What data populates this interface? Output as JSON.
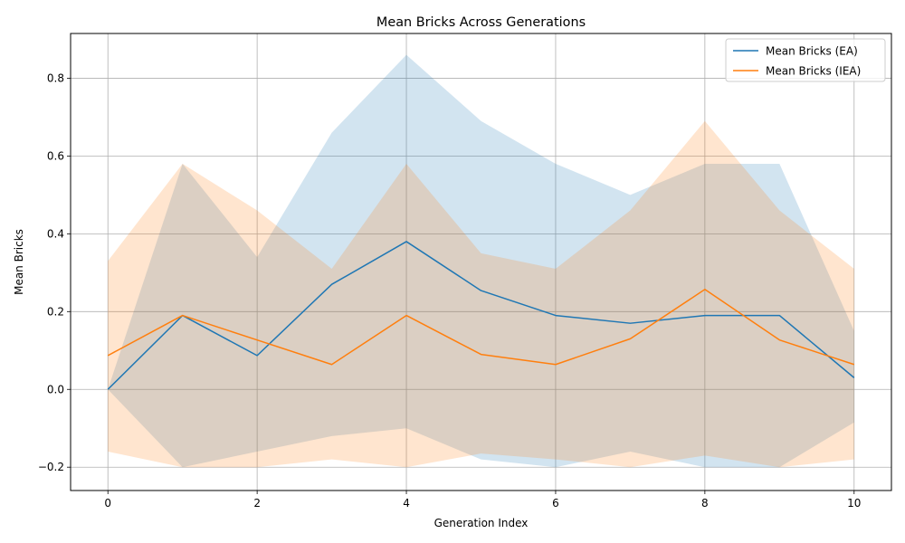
{
  "chart_data": {
    "type": "line",
    "title": "Mean Bricks  Across Generations",
    "xlabel": "Generation Index",
    "ylabel": "Mean Bricks",
    "x": [
      0,
      1,
      2,
      3,
      4,
      5,
      6,
      7,
      8,
      9,
      10
    ],
    "xlim": [
      -0.5,
      10.5
    ],
    "ylim": [
      -0.26,
      0.915
    ],
    "xticks": [
      0,
      2,
      4,
      6,
      8,
      10
    ],
    "xtick_labels": [
      "0",
      "2",
      "4",
      "6",
      "8",
      "10"
    ],
    "yticks": [
      -0.2,
      0.0,
      0.2,
      0.4,
      0.6,
      0.8
    ],
    "ytick_labels": [
      "−0.2",
      "0.0",
      "0.2",
      "0.4",
      "0.6",
      "0.8"
    ],
    "grid": true,
    "legend_position": "top-right",
    "series": [
      {
        "name": "Mean Bricks  (EA)",
        "color": "#1f77b4",
        "band_color": "#1f77b4",
        "values": [
          0.0,
          0.19,
          0.087,
          0.27,
          0.38,
          0.254,
          0.19,
          0.17,
          0.19,
          0.19,
          0.03
        ],
        "band_lower": [
          0.0,
          -0.2,
          -0.16,
          -0.12,
          -0.1,
          -0.18,
          -0.2,
          -0.16,
          -0.2,
          -0.2,
          -0.085
        ],
        "band_upper": [
          0.0,
          0.58,
          0.34,
          0.66,
          0.86,
          0.69,
          0.58,
          0.5,
          0.58,
          0.58,
          0.15
        ]
      },
      {
        "name": "Mean Bricks  (IEA)",
        "color": "#ff7f0e",
        "band_color": "#ff7f0e",
        "values": [
          0.087,
          0.19,
          0.127,
          0.064,
          0.19,
          0.09,
          0.064,
          0.13,
          0.257,
          0.127,
          0.064
        ],
        "band_lower": [
          -0.16,
          -0.2,
          -0.2,
          -0.18,
          -0.2,
          -0.165,
          -0.18,
          -0.2,
          -0.17,
          -0.2,
          -0.18
        ],
        "band_upper": [
          0.33,
          0.58,
          0.46,
          0.31,
          0.58,
          0.35,
          0.31,
          0.46,
          0.69,
          0.46,
          0.31
        ]
      }
    ]
  }
}
